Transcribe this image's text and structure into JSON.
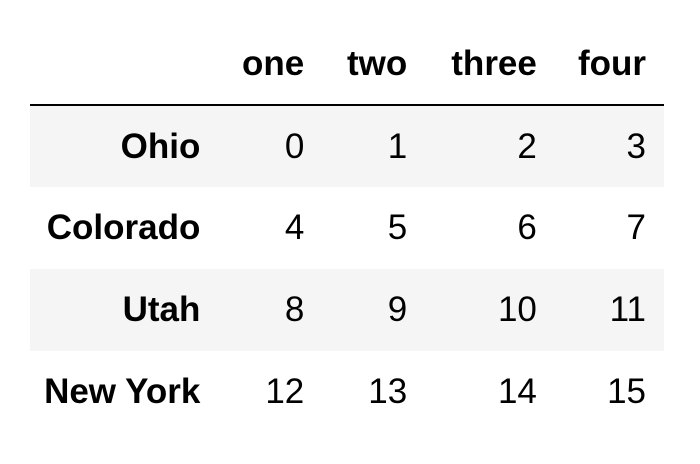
{
  "table": {
    "index_header": "",
    "columns": [
      "one",
      "two",
      "three",
      "four"
    ],
    "rows": [
      {
        "label": "Ohio",
        "values": [
          "0",
          "1",
          "2",
          "3"
        ]
      },
      {
        "label": "Colorado",
        "values": [
          "4",
          "5",
          "6",
          "7"
        ]
      },
      {
        "label": "Utah",
        "values": [
          "8",
          "9",
          "10",
          "11"
        ]
      },
      {
        "label": "New York",
        "values": [
          "12",
          "13",
          "14",
          "15"
        ]
      }
    ]
  },
  "colors": {
    "background": "#ffffff",
    "striped_row": "#f5f5f5",
    "header_rule": "#000000",
    "text": "#000000"
  }
}
